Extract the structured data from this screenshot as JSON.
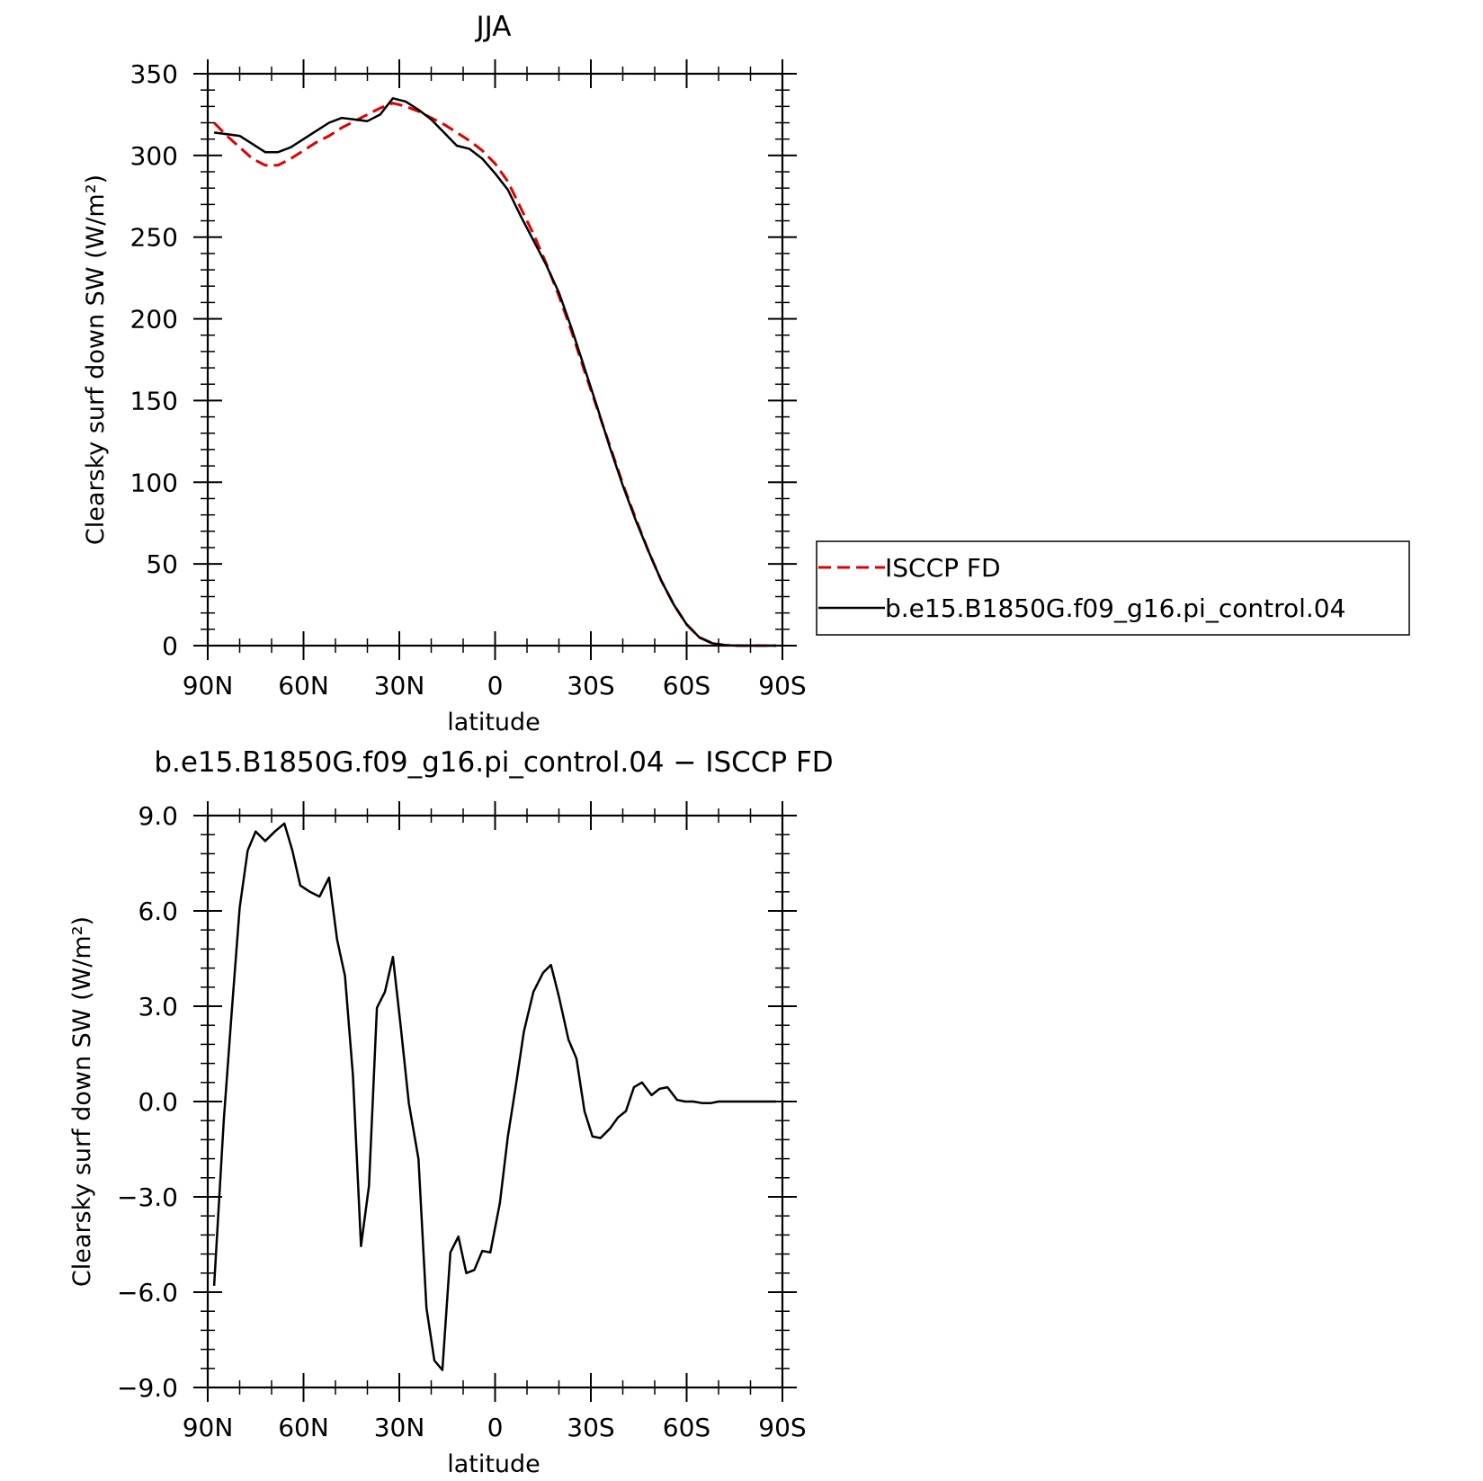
{
  "chart_data": [
    {
      "type": "line",
      "title": "JJA",
      "xlabel": "latitude",
      "ylabel": "Clearsky surf down SW (W/m²)",
      "xlim": [
        90,
        -90
      ],
      "ylim": [
        0,
        350
      ],
      "x_ticks": [
        90,
        60,
        30,
        0,
        -30,
        -60,
        -90
      ],
      "x_tick_labels": [
        "90N",
        "60N",
        "30N",
        "0",
        "30S",
        "60S",
        "90S"
      ],
      "y_ticks": [
        0,
        50,
        100,
        150,
        200,
        250,
        300,
        350
      ],
      "y_tick_labels": [
        "0",
        "50",
        "100",
        "150",
        "200",
        "250",
        "300",
        "350"
      ],
      "grid": false,
      "legend_position": "right",
      "series": [
        {
          "name": "ISCCP FD",
          "color": "#e00000",
          "dash": "dashed",
          "x": [
            88,
            84,
            80,
            76,
            72,
            68,
            64,
            60,
            56,
            52,
            48,
            44,
            40,
            36,
            32,
            28,
            24,
            20,
            16,
            12,
            8,
            4,
            0,
            -4,
            -8,
            -12,
            -16,
            -20,
            -24,
            -28,
            -32,
            -36,
            -40,
            -44,
            -48,
            -52,
            -56,
            -60,
            -64,
            -68,
            -72,
            -76,
            -80,
            -84,
            -88
          ],
          "y": [
            320,
            312,
            305,
            298,
            294,
            294,
            298,
            303,
            308,
            312,
            317,
            321,
            325,
            329,
            332,
            330,
            327,
            323,
            319,
            314,
            309,
            303,
            295,
            284,
            268,
            252,
            234,
            214,
            192,
            168,
            145,
            122,
            99,
            78,
            58,
            40,
            25,
            13,
            5,
            1.5,
            0.3,
            0,
            0,
            0,
            0
          ]
        },
        {
          "name": "b.e15.B1850G.f09_g16.pi_control.04",
          "color": "#000000",
          "dash": "solid",
          "x": [
            88,
            84,
            80,
            76,
            72,
            68,
            64,
            60,
            56,
            52,
            48,
            44,
            40,
            36,
            32,
            28,
            24,
            20,
            16,
            12,
            8,
            4,
            0,
            -4,
            -8,
            -12,
            -16,
            -20,
            -24,
            -28,
            -32,
            -36,
            -40,
            -44,
            -48,
            -52,
            -56,
            -60,
            -64,
            -68,
            -72,
            -76,
            -80,
            -84,
            -88
          ],
          "y": [
            314,
            313,
            312,
            307,
            302,
            302,
            305,
            310,
            315,
            320,
            323,
            322,
            321,
            325,
            335,
            333,
            328,
            322,
            314,
            306,
            304,
            298,
            289,
            279,
            263,
            248,
            233,
            216,
            194,
            170,
            146,
            121,
            98,
            77,
            58,
            40,
            25,
            13,
            5,
            1.5,
            0.3,
            0,
            0,
            0,
            0
          ]
        }
      ]
    },
    {
      "type": "line",
      "title": "b.e15.B1850G.f09_g16.pi_control.04 − ISCCP FD",
      "xlabel": "latitude",
      "ylabel": "Clearsky surf down SW (W/m²)",
      "xlim": [
        90,
        -90
      ],
      "ylim": [
        -9,
        9
      ],
      "x_ticks": [
        90,
        60,
        30,
        0,
        -30,
        -60,
        -90
      ],
      "x_tick_labels": [
        "90N",
        "60N",
        "30N",
        "0",
        "30S",
        "60S",
        "90S"
      ],
      "y_ticks": [
        -9,
        -6,
        -3,
        0,
        3,
        6,
        9
      ],
      "y_tick_labels": [
        "−9.0",
        "−6.0",
        "−3.0",
        "0.0",
        "3.0",
        "6.0",
        "9.0"
      ],
      "grid": false,
      "series": [
        {
          "color": "#000000",
          "dash": "solid",
          "x": [
            88,
            85,
            82.5,
            80,
            77.5,
            75,
            72,
            69,
            66,
            63.5,
            61,
            58,
            55,
            52,
            49.5,
            47,
            44.5,
            42,
            39.5,
            37,
            34.5,
            32,
            29.5,
            27,
            24,
            21.5,
            19,
            16.5,
            14,
            11.5,
            9,
            6.5,
            4,
            1.5,
            -1.5,
            -4,
            -6.5,
            -9,
            -12,
            -15,
            -17.5,
            -20,
            -23,
            -25.5,
            -28,
            -30.5,
            -33,
            -36,
            -38.5,
            -41,
            -43.5,
            -46,
            -49,
            -51.5,
            -54,
            -57,
            -59.5,
            -62,
            -65,
            -67.5,
            -70,
            -72.5,
            -75,
            -77.5,
            -80,
            -82.5,
            -85,
            -88
          ],
          "y": [
            -5.8,
            -0.6,
            2.8,
            6.1,
            7.9,
            8.5,
            8.2,
            8.5,
            8.75,
            7.9,
            6.8,
            6.6,
            6.45,
            7.05,
            5.1,
            3.95,
            0.8,
            -4.55,
            -2.65,
            2.95,
            3.45,
            4.55,
            2.3,
            -0.05,
            -1.8,
            -6.5,
            -8.15,
            -8.45,
            -4.75,
            -4.25,
            -5.4,
            -5.3,
            -4.7,
            -4.75,
            -3.2,
            -1.1,
            0.5,
            2.2,
            3.45,
            4.05,
            4.3,
            3.3,
            1.95,
            1.35,
            -0.3,
            -1.1,
            -1.15,
            -0.85,
            -0.5,
            -0.3,
            0.45,
            0.6,
            0.2,
            0.4,
            0.45,
            0.05,
            0.0,
            0.0,
            -0.05,
            -0.05,
            0.0,
            0.0,
            0.0,
            0.0,
            0.0,
            0.0,
            0.0,
            0.0
          ]
        }
      ]
    }
  ]
}
